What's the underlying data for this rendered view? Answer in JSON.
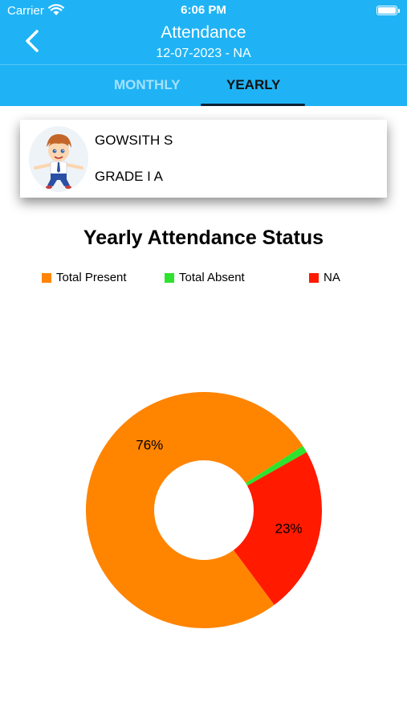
{
  "status_bar": {
    "carrier": "Carrier",
    "time": "6:06 PM"
  },
  "header": {
    "title": "Attendance",
    "subtitle": "12-07-2023 - NA"
  },
  "tabs": [
    {
      "label": "MONTHLY",
      "selected": false
    },
    {
      "label": "YEARLY",
      "selected": true
    }
  ],
  "student": {
    "name": "GOWSITH S",
    "grade": "GRADE I A"
  },
  "colors": {
    "header_bg": "#1fb3f5",
    "present": "#ff8400",
    "absent": "#2ee22e",
    "na": "#ff1a00"
  },
  "chart_data": {
    "type": "pie",
    "title": "Yearly Attendance Status",
    "legend_position": "top",
    "categories": [
      "Total Present",
      "Total Absent",
      "NA"
    ],
    "values": [
      76,
      1,
      23
    ],
    "labels": [
      "76%",
      "",
      "23%"
    ],
    "colors": [
      "#ff8400",
      "#2ee22e",
      "#ff1a00"
    ]
  }
}
